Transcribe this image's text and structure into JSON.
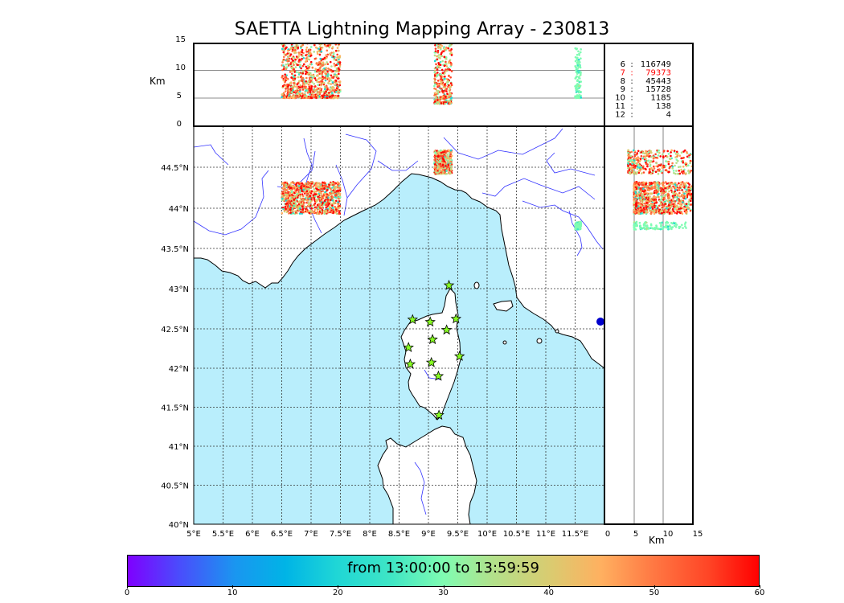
{
  "title": "SAETTA Lightning Mapping Array - 230813",
  "colors": {
    "sea": "#b9eefc",
    "land": "#ffffff",
    "rivers": "#3333ff",
    "coast": "#000000",
    "grid": "#333333",
    "highlight_count": "#ff0000",
    "star": "#88ff22"
  },
  "icons": {
    "lma_station": "star-icon",
    "radar_marker": "blue-dot-icon"
  },
  "alt_panel": {
    "ylabel": "Km",
    "yticks": [
      "0",
      "5",
      "10",
      "15"
    ]
  },
  "count_table": [
    {
      "alt": "6",
      "count": "116749",
      "highlight": false
    },
    {
      "alt": "7",
      "count": "79373",
      "highlight": true
    },
    {
      "alt": "8",
      "count": "45443",
      "highlight": false
    },
    {
      "alt": "9",
      "count": "15728",
      "highlight": false
    },
    {
      "alt": "10",
      "count": "1185",
      "highlight": false
    },
    {
      "alt": "11",
      "count": "138",
      "highlight": false
    },
    {
      "alt": "12",
      "count": "4",
      "highlight": false
    }
  ],
  "map": {
    "lon_labels": [
      "5°E",
      "5.5°E",
      "6°E",
      "6.5°E",
      "7°E",
      "7.5°E",
      "8°E",
      "8.5°E",
      "9°E",
      "9.5°E",
      "10°E",
      "10.5°E",
      "11°E",
      "11.5°E"
    ],
    "lat_labels": [
      "40°N",
      "40.5°N",
      "41°N",
      "41.5°N",
      "42°N",
      "42.5°N",
      "43°N",
      "43.5°N",
      "44°N",
      "44.5°N"
    ]
  },
  "side_panel": {
    "xlabel": "Km",
    "xticks": [
      "0",
      "5",
      "10",
      "15"
    ]
  },
  "colorbar": {
    "label": "from 13:00:00 to 13:59:59",
    "ticks": [
      "0",
      "10",
      "20",
      "30",
      "40",
      "50",
      "60"
    ]
  },
  "chart_data": {
    "type": "scatter",
    "title": "SAETTA Lightning Mapping Array - 230813",
    "xlim": [
      5,
      12
    ],
    "ylim": [
      40,
      45
    ],
    "alt_lim_km": [
      0,
      15
    ],
    "color_scale_minutes": [
      0,
      60
    ],
    "sources_per_altitude_km": {
      "6": 116749,
      "7": 79373,
      "8": 45443,
      "9": 15728,
      "10": 1185,
      "11": 138,
      "12": 4
    },
    "clusters": [
      {
        "name": "",
        "lon_range": [
          6.5,
          7.5
        ],
        "lat_range": [
          43.9,
          44.3
        ],
        "alt_km_range": [
          5,
          15
        ]
      },
      {
        "name": "",
        "lon_range": [
          9.1,
          9.4
        ],
        "lat_range": [
          44.4,
          44.7
        ],
        "alt_km_range": [
          4,
          15
        ]
      },
      {
        "name": "",
        "lon_range": [
          11.5,
          11.6
        ],
        "lat_range": [
          43.7,
          43.8
        ],
        "alt_km_range": [
          5,
          14
        ]
      }
    ],
    "lma_stations": [
      [
        9.35,
        43.0
      ],
      [
        8.73,
        42.57
      ],
      [
        9.03,
        42.54
      ],
      [
        9.47,
        42.58
      ],
      [
        9.31,
        42.44
      ],
      [
        9.07,
        42.32
      ],
      [
        8.66,
        42.22
      ],
      [
        9.53,
        42.11
      ],
      [
        8.69,
        42.01
      ],
      [
        9.05,
        42.03
      ],
      [
        9.17,
        41.86
      ],
      [
        9.18,
        41.37
      ]
    ]
  }
}
